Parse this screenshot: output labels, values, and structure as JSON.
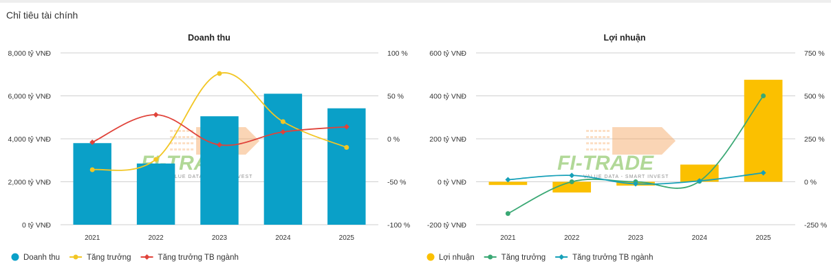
{
  "header": {
    "title": "Chỉ tiêu tài chính"
  },
  "watermark": {
    "name": "FI-TRADE",
    "tagline": "VALUE DATA - SMART INVEST"
  },
  "chart_data": [
    {
      "id": "revenue",
      "type": "bar",
      "title": "Doanh thu",
      "categories": [
        "2021",
        "2022",
        "2023",
        "2024",
        "2025"
      ],
      "left_axis": {
        "ticks": [
          "0 tỷ VNĐ",
          "2,000 tỷ VNĐ",
          "4,000 tỷ VNĐ",
          "6,000 tỷ VNĐ",
          "8,000 tỷ VNĐ"
        ],
        "range": [
          0,
          8000
        ]
      },
      "right_axis": {
        "ticks": [
          "-100 %",
          "-50 %",
          "0 %",
          "50 %",
          "100 %"
        ],
        "range": [
          -100,
          100
        ]
      },
      "series": [
        {
          "name": "Doanh thu",
          "kind": "bar",
          "axis": "left",
          "color": "#0aa0c8",
          "values": [
            3800,
            2850,
            5050,
            6100,
            5420
          ]
        },
        {
          "name": "Tăng trưởng",
          "kind": "line",
          "axis": "right",
          "color": "#f2c624",
          "values": [
            -36,
            -24,
            76,
            20,
            -10
          ]
        },
        {
          "name": "Tăng trưởng TB ngành",
          "kind": "line",
          "axis": "right",
          "color": "#e0433a",
          "values": [
            -4,
            28,
            -7,
            8,
            14
          ]
        }
      ],
      "legend_position": "bottom-left",
      "grid": true
    },
    {
      "id": "profit",
      "type": "bar",
      "title": "Lợi nhuận",
      "categories": [
        "2021",
        "2022",
        "2023",
        "2024",
        "2025"
      ],
      "left_axis": {
        "ticks": [
          "-200 tỷ VNĐ",
          "0 tỷ VNĐ",
          "200 tỷ VNĐ",
          "400 tỷ VNĐ",
          "600 tỷ VNĐ"
        ],
        "range": [
          -200,
          600
        ]
      },
      "right_axis": {
        "ticks": [
          "-250 %",
          "0 %",
          "250 %",
          "500 %",
          "750 %"
        ],
        "range": [
          -250,
          750
        ]
      },
      "series": [
        {
          "name": "Lợi nhuận",
          "kind": "bar",
          "axis": "left",
          "color": "#fbc000",
          "values": [
            -15,
            -50,
            -18,
            80,
            475
          ]
        },
        {
          "name": "Tăng trưởng",
          "kind": "line",
          "axis": "right",
          "color": "#3aa874",
          "values": [
            -185,
            0,
            0,
            3,
            500
          ]
        },
        {
          "name": "Tăng trưởng TB ngành",
          "kind": "line",
          "axis": "right",
          "color": "#16a0b8",
          "values": [
            12,
            37,
            -12,
            5,
            52
          ]
        }
      ],
      "legend_position": "bottom-left",
      "grid": true
    }
  ]
}
